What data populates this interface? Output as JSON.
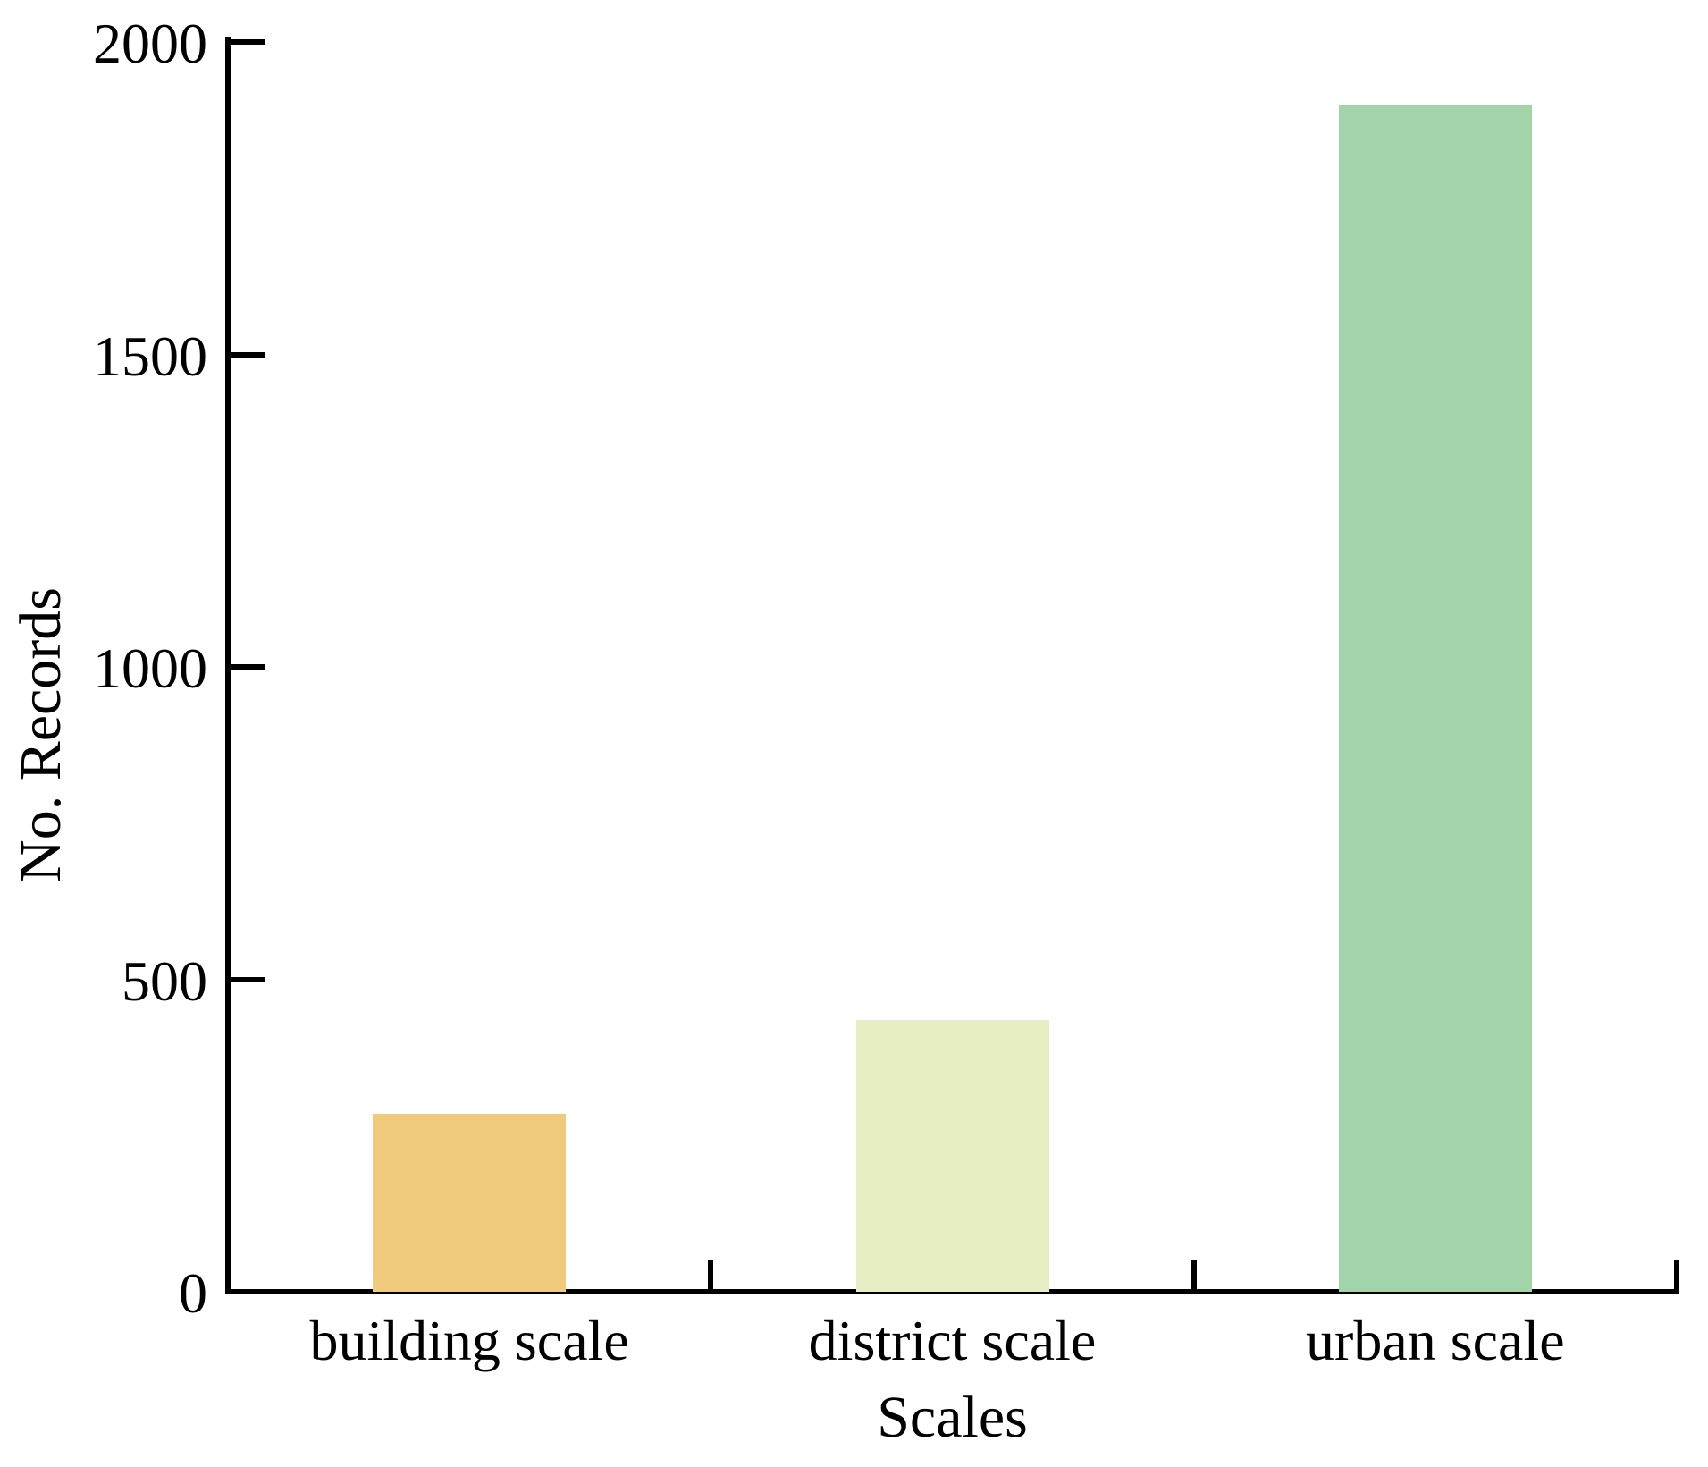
{
  "figure": {
    "background_color": "#ffffff",
    "text_color": "#000000",
    "axis_color": "#000000"
  },
  "chart_data": {
    "type": "bar",
    "title": "",
    "xlabel": "Scales",
    "ylabel": "No. Records",
    "categories": [
      "building scale",
      "district scale",
      "urban scale"
    ],
    "values": [
      285,
      435,
      1900
    ],
    "bar_colors": [
      "#f0ca7d",
      "#e7eec3",
      "#a2d3a9"
    ],
    "ylim": [
      0,
      2000
    ],
    "yticks": [
      0,
      500,
      1000,
      1500,
      2000
    ],
    "ytick_labels": [
      "0",
      "500",
      "1000",
      "1500",
      "2000"
    ],
    "grid": false,
    "legend_position": "none",
    "tick_direction": "in",
    "spines": [
      "left",
      "bottom"
    ]
  }
}
